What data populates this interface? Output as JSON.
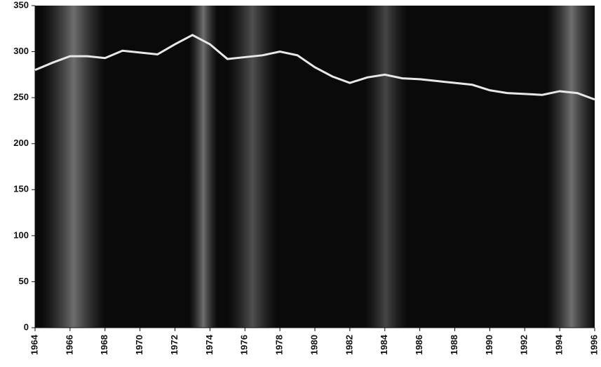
{
  "chart_data": {
    "type": "line",
    "x": [
      1964,
      1965,
      1966,
      1967,
      1968,
      1969,
      1970,
      1971,
      1972,
      1973,
      1974,
      1975,
      1976,
      1977,
      1978,
      1979,
      1980,
      1981,
      1982,
      1983,
      1984,
      1985,
      1986,
      1987,
      1988,
      1989,
      1990,
      1991,
      1992,
      1993,
      1994,
      1995,
      1996
    ],
    "series": [
      {
        "color": "#e8e8e8",
        "values": [
          280,
          288,
          295,
          295,
          293,
          301,
          299,
          297,
          308,
          318,
          308,
          292,
          294,
          296,
          300,
          296,
          283,
          273,
          266,
          272,
          275,
          271,
          270,
          268,
          266,
          264,
          258,
          255,
          254,
          253,
          257,
          255,
          248
        ]
      }
    ],
    "xlim": [
      1964,
      1996
    ],
    "xticks": [
      1964,
      1966,
      1968,
      1970,
      1972,
      1974,
      1976,
      1978,
      1980,
      1982,
      1984,
      1986,
      1988,
      1990,
      1992,
      1994,
      1996
    ],
    "ylim": [
      0,
      350
    ],
    "yticks": [
      0,
      50,
      100,
      150,
      200,
      250,
      300,
      350
    ]
  }
}
